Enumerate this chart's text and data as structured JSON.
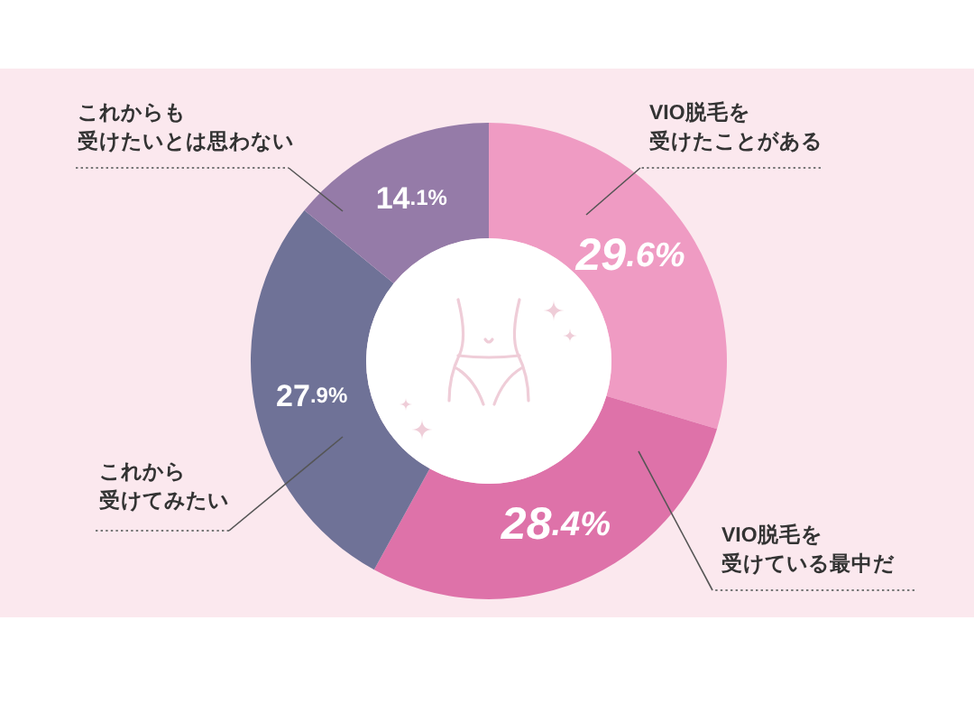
{
  "chart_data": {
    "type": "donut",
    "categories": [
      "VIO脱毛を受けたことがある",
      "VIO脱毛を受けている最中だ",
      "これから受けてみたい",
      "これからも受けたいとは思わない"
    ],
    "values": [
      29.6,
      28.4,
      27.9,
      14.1
    ],
    "colors": [
      "#ef9bc3",
      "#de72a9",
      "#6f7297",
      "#957ba8"
    ],
    "value_labels": [
      "29.6%",
      "28.4%",
      "27.9%",
      "14.1%"
    ]
  }
}
